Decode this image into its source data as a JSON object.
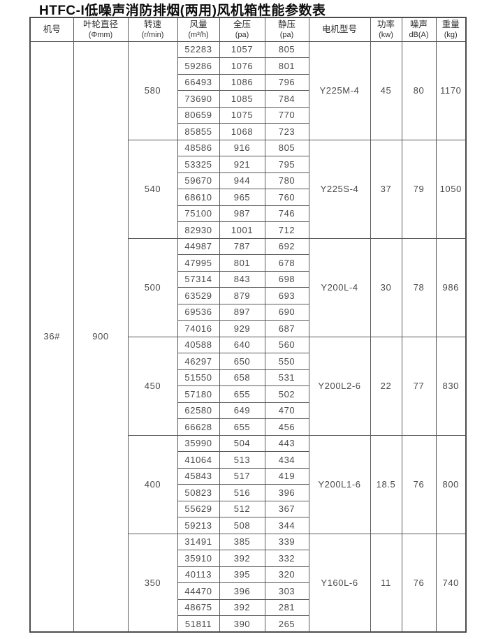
{
  "title": "HTFC-I低噪声消防排烟(两用)风机箱性能参数表",
  "table": {
    "headers": [
      {
        "line1": "机号",
        "line2": ""
      },
      {
        "line1": "叶轮直径",
        "line2": "(Φmm)"
      },
      {
        "line1": "转速",
        "line2": "(r/min)"
      },
      {
        "line1": "风量",
        "line2": "(m³/h)"
      },
      {
        "line1": "全压",
        "line2": "(pa)"
      },
      {
        "line1": "静压",
        "line2": "(pa)"
      },
      {
        "line1": "电机型号",
        "line2": ""
      },
      {
        "line1": "功率",
        "line2": "(kw)"
      },
      {
        "line1": "噪声",
        "line2": "dB(A)"
      },
      {
        "line1": "重量",
        "line2": "(kg)"
      }
    ],
    "machine_no": "36#",
    "impeller_diameter": "900",
    "groups": [
      {
        "speed": "580",
        "rows": [
          [
            "52283",
            "1057",
            "805"
          ],
          [
            "59286",
            "1076",
            "801"
          ],
          [
            "66493",
            "1086",
            "796"
          ],
          [
            "73690",
            "1085",
            "784"
          ],
          [
            "80659",
            "1075",
            "770"
          ],
          [
            "85855",
            "1068",
            "723"
          ]
        ],
        "motor": "Y225M-4",
        "power": "45",
        "noise": "80",
        "weight": "1170"
      },
      {
        "speed": "540",
        "rows": [
          [
            "48586",
            "916",
            "805"
          ],
          [
            "53325",
            "921",
            "795"
          ],
          [
            "59670",
            "944",
            "780"
          ],
          [
            "68610",
            "965",
            "760"
          ],
          [
            "75100",
            "987",
            "746"
          ],
          [
            "82930",
            "1001",
            "712"
          ]
        ],
        "motor": "Y225S-4",
        "power": "37",
        "noise": "79",
        "weight": "1050"
      },
      {
        "speed": "500",
        "rows": [
          [
            "44987",
            "787",
            "692"
          ],
          [
            "47995",
            "801",
            "678"
          ],
          [
            "57314",
            "843",
            "698"
          ],
          [
            "63529",
            "879",
            "693"
          ],
          [
            "69536",
            "897",
            "690"
          ],
          [
            "74016",
            "929",
            "687"
          ]
        ],
        "motor": "Y200L-4",
        "power": "30",
        "noise": "78",
        "weight": "986"
      },
      {
        "speed": "450",
        "rows": [
          [
            "40588",
            "640",
            "560"
          ],
          [
            "46297",
            "650",
            "550"
          ],
          [
            "51550",
            "658",
            "531"
          ],
          [
            "57180",
            "655",
            "502"
          ],
          [
            "62580",
            "649",
            "470"
          ],
          [
            "66628",
            "655",
            "456"
          ]
        ],
        "motor": "Y200L2-6",
        "power": "22",
        "noise": "77",
        "weight": "830"
      },
      {
        "speed": "400",
        "rows": [
          [
            "35990",
            "504",
            "443"
          ],
          [
            "41064",
            "513",
            "434"
          ],
          [
            "45843",
            "517",
            "419"
          ],
          [
            "50823",
            "516",
            "396"
          ],
          [
            "55629",
            "512",
            "367"
          ],
          [
            "59213",
            "508",
            "344"
          ]
        ],
        "motor": "Y200L1-6",
        "power": "18.5",
        "noise": "76",
        "weight": "800"
      },
      {
        "speed": "350",
        "rows": [
          [
            "31491",
            "385",
            "339"
          ],
          [
            "35910",
            "392",
            "332"
          ],
          [
            "40113",
            "395",
            "320"
          ],
          [
            "44470",
            "396",
            "303"
          ],
          [
            "48675",
            "392",
            "281"
          ],
          [
            "51811",
            "390",
            "265"
          ]
        ],
        "motor": "Y160L-6",
        "power": "11",
        "noise": "76",
        "weight": "740"
      }
    ]
  }
}
